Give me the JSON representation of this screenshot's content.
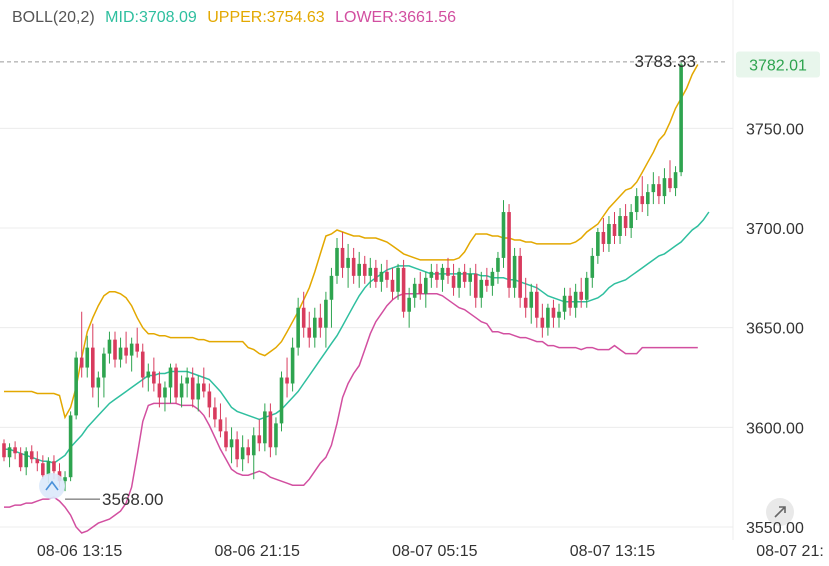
{
  "legend": {
    "boll_label": "BOLL(20,2)",
    "mid_label": "MID:3708.09",
    "upper_label": "UPPER:3754.63",
    "lower_label": "LOWER:3661.56"
  },
  "colors": {
    "up": "#2ea44f",
    "down": "#d83b5e",
    "mid": "#2fbf9f",
    "upper": "#e3a800",
    "lower": "#d24fa0",
    "grid": "#ececec",
    "axis_text": "#333333",
    "badge_bg": "#e8f6ec",
    "badge_text": "#2ea44f"
  },
  "chart_data": {
    "type": "candlestick",
    "y_ticks": [
      "3750.00",
      "3700.00",
      "3650.00",
      "3600.00",
      "3550.00"
    ],
    "y_tick_values": [
      3750,
      3700,
      3650,
      3600,
      3550
    ],
    "ylim": [
      3543.5,
      3794.3
    ],
    "x_ticks": [
      "08-06 13:15",
      "08-06 21:15",
      "08-07 05:15",
      "08-07 13:15",
      "08-07 21:"
    ],
    "x_tick_index": [
      12,
      44,
      76,
      108,
      140
    ],
    "grid": true,
    "annotations": {
      "high_label": "3783.33",
      "high_value": 3783.33,
      "low_label": "3568.00",
      "low_value": 3568.0,
      "low_index": 11,
      "last_price": "3782.01",
      "last_value": 3782.01
    },
    "series": [
      {
        "name": "MID",
        "values": [
          3589,
          3589,
          3588,
          3587,
          3586,
          3585,
          3584,
          3583,
          3583,
          3582,
          3584,
          3586,
          3590,
          3593,
          3596,
          3600,
          3603,
          3606,
          3609,
          3612,
          3614,
          3616,
          3618,
          3620,
          3622,
          3624,
          3626,
          3626,
          3627,
          3627,
          3628,
          3628,
          3628,
          3628,
          3627,
          3626,
          3625,
          3624,
          3621,
          3618,
          3614,
          3610,
          3608,
          3607,
          3606,
          3605,
          3604,
          3605,
          3606,
          3607,
          3609,
          3612,
          3615,
          3618,
          3622,
          3626,
          3630,
          3634,
          3638,
          3642,
          3646,
          3651,
          3656,
          3661,
          3666,
          3670,
          3673,
          3675,
          3677,
          3679,
          3680,
          3681,
          3681,
          3681,
          3680,
          3679,
          3678,
          3677,
          3677,
          3677,
          3677,
          3677,
          3677,
          3677,
          3677,
          3677,
          3676,
          3676,
          3675,
          3675,
          3675,
          3674,
          3674,
          3673,
          3672,
          3671,
          3670,
          3668,
          3666,
          3665,
          3664,
          3663,
          3663,
          3663,
          3663,
          3663,
          3664,
          3665,
          3667,
          3670,
          3672,
          3673,
          3674,
          3676,
          3678,
          3680,
          3682,
          3684,
          3686,
          3687,
          3689,
          3691,
          3693,
          3696,
          3699,
          3701,
          3704,
          3708
        ]
      },
      {
        "name": "UPPER",
        "values": [
          3618,
          3618,
          3618,
          3618,
          3618,
          3618,
          3617,
          3617,
          3617,
          3617,
          3616,
          3605,
          3610,
          3620,
          3635,
          3648,
          3655,
          3661,
          3666,
          3668,
          3668,
          3667,
          3665,
          3661,
          3655,
          3650,
          3647,
          3647,
          3646,
          3646,
          3645,
          3645,
          3645,
          3645,
          3645,
          3644,
          3644,
          3643,
          3643,
          3643,
          3643,
          3643,
          3643,
          3643,
          3640,
          3639,
          3637,
          3636,
          3638,
          3640,
          3643,
          3648,
          3653,
          3658,
          3664,
          3670,
          3678,
          3687,
          3696,
          3697,
          3699,
          3698,
          3697,
          3696,
          3696,
          3695,
          3695,
          3695,
          3694,
          3693,
          3691,
          3689,
          3687,
          3686,
          3685,
          3684,
          3684,
          3684,
          3684,
          3684,
          3684,
          3684,
          3685,
          3688,
          3693,
          3697,
          3697,
          3697,
          3696,
          3696,
          3695,
          3695,
          3694,
          3694,
          3693,
          3693,
          3692,
          3692,
          3692,
          3692,
          3692,
          3692,
          3692,
          3693,
          3695,
          3698,
          3700,
          3702,
          3706,
          3710,
          3713,
          3716,
          3719,
          3720,
          3723,
          3728,
          3733,
          3738,
          3744,
          3747,
          3753,
          3760,
          3765,
          3770,
          3777,
          3782
        ]
      },
      {
        "name": "LOWER",
        "values": [
          3560,
          3560,
          3561,
          3561,
          3562,
          3562,
          3563,
          3564,
          3564,
          3565,
          3563,
          3560,
          3556,
          3550,
          3547,
          3548,
          3550,
          3552,
          3553,
          3554,
          3556,
          3558,
          3562,
          3570,
          3586,
          3603,
          3611,
          3612,
          3612,
          3612,
          3612,
          3612,
          3611,
          3611,
          3611,
          3609,
          3606,
          3601,
          3595,
          3589,
          3584,
          3579,
          3577,
          3576,
          3576,
          3577,
          3578,
          3577,
          3575,
          3574,
          3573,
          3572,
          3571,
          3571,
          3571,
          3574,
          3578,
          3582,
          3585,
          3591,
          3602,
          3615,
          3622,
          3627,
          3631,
          3639,
          3647,
          3653,
          3657,
          3661,
          3664,
          3666,
          3667,
          3667,
          3667,
          3667,
          3667,
          3667,
          3667,
          3666,
          3664,
          3662,
          3660,
          3659,
          3657,
          3655,
          3653,
          3652,
          3648,
          3648,
          3647,
          3647,
          3646,
          3645,
          3645,
          3644,
          3643,
          3643,
          3641,
          3641,
          3640,
          3640,
          3640,
          3640,
          3639,
          3640,
          3640,
          3639,
          3639,
          3639,
          3641,
          3639,
          3637,
          3637,
          3637,
          3640,
          3640,
          3640,
          3640,
          3640,
          3640,
          3640,
          3640,
          3640,
          3640,
          3640
        ]
      }
    ],
    "candles": [
      [
        3592,
        3594,
        3583,
        3585
      ],
      [
        3585,
        3592,
        3580,
        3590
      ],
      [
        3590,
        3593,
        3584,
        3587
      ],
      [
        3587,
        3590,
        3578,
        3580
      ],
      [
        3580,
        3590,
        3576,
        3588
      ],
      [
        3588,
        3591,
        3582,
        3584
      ],
      [
        3584,
        3588,
        3578,
        3582
      ],
      [
        3582,
        3586,
        3574,
        3576
      ],
      [
        3576,
        3585,
        3572,
        3583
      ],
      [
        3583,
        3586,
        3574,
        3578
      ],
      [
        3578,
        3582,
        3570,
        3573
      ],
      [
        3573,
        3578,
        3568,
        3575
      ],
      [
        3575,
        3608,
        3573,
        3606
      ],
      [
        3606,
        3638,
        3604,
        3635
      ],
      [
        3635,
        3658,
        3625,
        3630
      ],
      [
        3630,
        3646,
        3625,
        3640
      ],
      [
        3640,
        3652,
        3615,
        3620
      ],
      [
        3620,
        3628,
        3610,
        3625
      ],
      [
        3625,
        3640,
        3615,
        3637
      ],
      [
        3637,
        3648,
        3632,
        3644
      ],
      [
        3644,
        3648,
        3630,
        3634
      ],
      [
        3634,
        3645,
        3630,
        3640
      ],
      [
        3640,
        3648,
        3632,
        3636
      ],
      [
        3636,
        3645,
        3628,
        3642
      ],
      [
        3642,
        3650,
        3635,
        3638
      ],
      [
        3638,
        3642,
        3620,
        3625
      ],
      [
        3625,
        3632,
        3618,
        3628
      ],
      [
        3628,
        3635,
        3618,
        3622
      ],
      [
        3622,
        3628,
        3610,
        3615
      ],
      [
        3615,
        3623,
        3608,
        3620
      ],
      [
        3620,
        3632,
        3612,
        3630
      ],
      [
        3630,
        3632,
        3612,
        3615
      ],
      [
        3615,
        3626,
        3610,
        3622
      ],
      [
        3622,
        3630,
        3615,
        3625
      ],
      [
        3625,
        3630,
        3610,
        3614
      ],
      [
        3614,
        3626,
        3608,
        3622
      ],
      [
        3622,
        3630,
        3615,
        3618
      ],
      [
        3618,
        3622,
        3605,
        3610
      ],
      [
        3610,
        3615,
        3600,
        3604
      ],
      [
        3604,
        3612,
        3595,
        3598
      ],
      [
        3598,
        3605,
        3588,
        3590
      ],
      [
        3590,
        3600,
        3582,
        3594
      ],
      [
        3594,
        3598,
        3580,
        3584
      ],
      [
        3584,
        3596,
        3578,
        3590
      ],
      [
        3590,
        3594,
        3582,
        3586
      ],
      [
        3586,
        3600,
        3574,
        3596
      ],
      [
        3596,
        3604,
        3588,
        3592
      ],
      [
        3592,
        3612,
        3588,
        3608
      ],
      [
        3608,
        3612,
        3585,
        3590
      ],
      [
        3590,
        3605,
        3586,
        3602
      ],
      [
        3602,
        3628,
        3598,
        3625
      ],
      [
        3625,
        3635,
        3615,
        3622
      ],
      [
        3622,
        3645,
        3618,
        3640
      ],
      [
        3640,
        3665,
        3636,
        3660
      ],
      [
        3660,
        3668,
        3645,
        3650
      ],
      [
        3650,
        3658,
        3640,
        3645
      ],
      [
        3645,
        3660,
        3640,
        3655
      ],
      [
        3655,
        3662,
        3645,
        3650
      ],
      [
        3650,
        3668,
        3640,
        3664
      ],
      [
        3664,
        3680,
        3650,
        3676
      ],
      [
        3676,
        3695,
        3672,
        3690
      ],
      [
        3690,
        3698,
        3675,
        3680
      ],
      [
        3680,
        3692,
        3670,
        3685
      ],
      [
        3685,
        3690,
        3672,
        3676
      ],
      [
        3676,
        3688,
        3670,
        3682
      ],
      [
        3682,
        3686,
        3672,
        3676
      ],
      [
        3676,
        3685,
        3670,
        3680
      ],
      [
        3680,
        3684,
        3670,
        3673
      ],
      [
        3673,
        3682,
        3668,
        3678
      ],
      [
        3678,
        3684,
        3670,
        3674
      ],
      [
        3674,
        3680,
        3664,
        3668
      ],
      [
        3668,
        3682,
        3664,
        3680
      ],
      [
        3680,
        3684,
        3655,
        3658
      ],
      [
        3658,
        3670,
        3650,
        3665
      ],
      [
        3665,
        3675,
        3660,
        3672
      ],
      [
        3672,
        3678,
        3664,
        3667
      ],
      [
        3667,
        3678,
        3660,
        3675
      ],
      [
        3675,
        3682,
        3670,
        3678
      ],
      [
        3678,
        3682,
        3670,
        3674
      ],
      [
        3674,
        3682,
        3668,
        3680
      ],
      [
        3680,
        3685,
        3672,
        3676
      ],
      [
        3676,
        3682,
        3666,
        3670
      ],
      [
        3670,
        3680,
        3665,
        3678
      ],
      [
        3678,
        3682,
        3670,
        3673
      ],
      [
        3673,
        3680,
        3666,
        3677
      ],
      [
        3677,
        3682,
        3660,
        3665
      ],
      [
        3665,
        3678,
        3660,
        3674
      ],
      [
        3674,
        3680,
        3668,
        3671
      ],
      [
        3671,
        3680,
        3666,
        3678
      ],
      [
        3678,
        3688,
        3672,
        3685
      ],
      [
        3685,
        3714,
        3680,
        3708
      ],
      [
        3708,
        3712,
        3665,
        3670
      ],
      [
        3670,
        3690,
        3665,
        3686
      ],
      [
        3686,
        3690,
        3660,
        3665
      ],
      [
        3665,
        3675,
        3655,
        3660
      ],
      [
        3660,
        3672,
        3652,
        3668
      ],
      [
        3668,
        3672,
        3650,
        3655
      ],
      [
        3655,
        3662,
        3645,
        3650
      ],
      [
        3650,
        3662,
        3646,
        3660
      ],
      [
        3660,
        3664,
        3650,
        3655
      ],
      [
        3655,
        3662,
        3650,
        3658
      ],
      [
        3658,
        3670,
        3654,
        3666
      ],
      [
        3666,
        3670,
        3656,
        3660
      ],
      [
        3660,
        3672,
        3655,
        3668
      ],
      [
        3668,
        3675,
        3660,
        3664
      ],
      [
        3664,
        3678,
        3660,
        3675
      ],
      [
        3675,
        3690,
        3670,
        3686
      ],
      [
        3686,
        3700,
        3682,
        3698
      ],
      [
        3698,
        3705,
        3688,
        3692
      ],
      [
        3692,
        3706,
        3688,
        3702
      ],
      [
        3702,
        3708,
        3692,
        3696
      ],
      [
        3696,
        3710,
        3692,
        3706
      ],
      [
        3706,
        3712,
        3696,
        3700
      ],
      [
        3700,
        3712,
        3695,
        3708
      ],
      [
        3708,
        3720,
        3704,
        3716
      ],
      [
        3716,
        3726,
        3708,
        3712
      ],
      [
        3712,
        3722,
        3706,
        3718
      ],
      [
        3718,
        3728,
        3712,
        3722
      ],
      [
        3722,
        3726,
        3712,
        3716
      ],
      [
        3716,
        3730,
        3712,
        3725
      ],
      [
        3725,
        3734,
        3718,
        3720
      ],
      [
        3720,
        3731,
        3716,
        3728
      ],
      [
        3728,
        3783.33,
        3726,
        3782
      ]
    ]
  }
}
